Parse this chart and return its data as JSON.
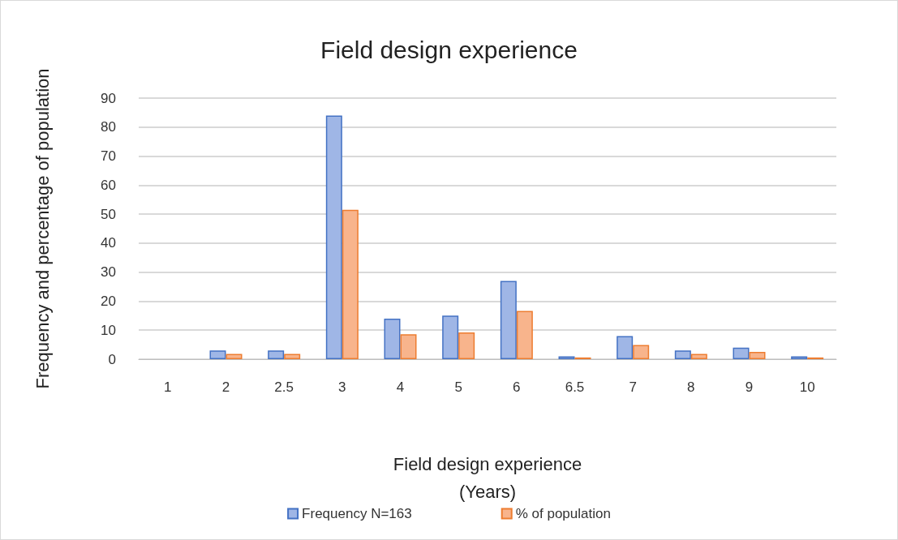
{
  "chart_data": {
    "type": "bar",
    "title": "Field design experience",
    "xlabel": "Field design experience\n(Years)",
    "ylabel": "Frequency and percentage of population",
    "categories": [
      "1",
      "2",
      "2.5",
      "3",
      "4",
      "5",
      "6",
      "6.5",
      "7",
      "8",
      "9",
      "10"
    ],
    "series": [
      {
        "name": "Frequency N=163",
        "color": "#9fb6e6",
        "values": [
          0,
          3,
          3,
          84,
          14,
          15,
          27,
          1,
          8,
          3,
          4,
          1
        ]
      },
      {
        "name": "% of population",
        "color": "#f8b48c",
        "values": [
          0,
          1.8,
          1.8,
          51.5,
          8.6,
          9.2,
          16.6,
          0.6,
          4.9,
          1.8,
          2.5,
          0.6
        ]
      }
    ],
    "ylim": [
      0,
      90
    ],
    "yticks": [
      0,
      10,
      20,
      30,
      40,
      50,
      60,
      70,
      80,
      90
    ],
    "grid": "y",
    "legend": "bottom"
  }
}
